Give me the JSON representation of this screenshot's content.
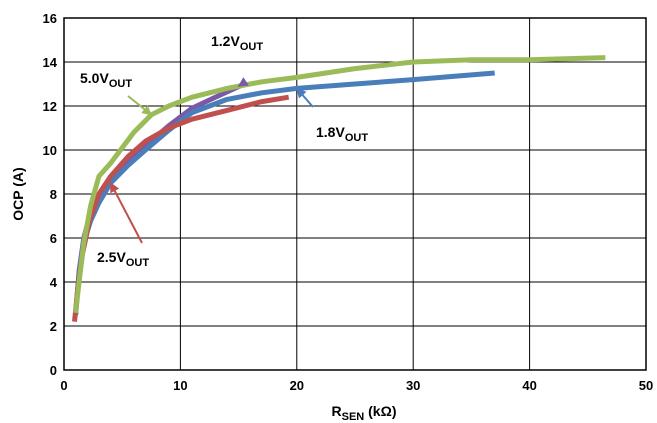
{
  "chart_data": {
    "type": "line",
    "xlabel": "R",
    "xlabel_sub": "SEN",
    "xlabel_unit": " (kΩ)",
    "ylabel": "OCP (A)",
    "xlim": [
      0,
      50
    ],
    "ylim": [
      0,
      16
    ],
    "xticks": [
      0,
      10,
      20,
      30,
      40,
      50
    ],
    "yticks": [
      0,
      2,
      4,
      6,
      8,
      10,
      12,
      14,
      16
    ],
    "grid": true,
    "legend": "none",
    "series": [
      {
        "name": "1.2V",
        "name_sub": "OUT",
        "color": "#7a5aa6",
        "x": [
          1.0,
          1.3,
          1.7,
          2.2,
          3.0,
          4.0,
          5.5,
          7.0,
          9.0,
          11.0,
          13.0,
          15.5
        ],
        "y": [
          2.5,
          4.5,
          6.0,
          7.0,
          7.8,
          8.6,
          9.4,
          10.2,
          11.1,
          11.9,
          12.4,
          13.0
        ]
      },
      {
        "name": "1.8V",
        "name_sub": "OUT",
        "color": "#4a7ebb",
        "x": [
          1.0,
          1.3,
          1.7,
          2.3,
          3.0,
          4.0,
          5.5,
          7.0,
          9.0,
          11.0,
          14.0,
          17.0,
          20.0,
          25.0,
          30.0,
          37.0
        ],
        "y": [
          2.5,
          4.4,
          5.8,
          6.8,
          7.6,
          8.5,
          9.3,
          10.0,
          10.9,
          11.7,
          12.3,
          12.6,
          12.8,
          13.0,
          13.2,
          13.5
        ]
      },
      {
        "name": "2.5V",
        "name_sub": "OUT",
        "color": "#c0504d",
        "x": [
          0.9,
          1.2,
          1.6,
          2.2,
          3.0,
          4.0,
          5.5,
          7.0,
          9.0,
          11.0,
          14.0,
          17.0,
          19.3
        ],
        "y": [
          2.2,
          3.8,
          5.3,
          6.8,
          8.0,
          8.8,
          9.7,
          10.4,
          11.0,
          11.4,
          11.8,
          12.2,
          12.4
        ]
      },
      {
        "name": "5.0V",
        "name_sub": "OUT",
        "color": "#9bbb59",
        "x": [
          1.0,
          1.3,
          1.7,
          2.3,
          3.0,
          4.0,
          5.0,
          6.0,
          7.5,
          9.0,
          11.0,
          14.0,
          17.0,
          20.0,
          25.0,
          30.0,
          35.0,
          40.0,
          46.5
        ],
        "y": [
          2.6,
          4.0,
          5.8,
          7.5,
          8.8,
          9.4,
          10.1,
          10.8,
          11.6,
          12.0,
          12.4,
          12.8,
          13.1,
          13.3,
          13.7,
          14.0,
          14.1,
          14.1,
          14.2
        ]
      }
    ],
    "annotations": [
      {
        "text": "1.2V",
        "sub": "OUT",
        "series": 0,
        "arrow_to": [
          15.0,
          12.9
        ]
      },
      {
        "text": "5.0V",
        "sub": "OUT",
        "series": 3,
        "arrow_to": [
          7.5,
          11.6
        ]
      },
      {
        "text": "1.8V",
        "sub": "OUT",
        "series": 1,
        "arrow_to": [
          20.0,
          12.8
        ]
      },
      {
        "text": "2.5V",
        "sub": "OUT",
        "series": 2,
        "arrow_to": [
          4.0,
          8.5
        ]
      }
    ]
  }
}
